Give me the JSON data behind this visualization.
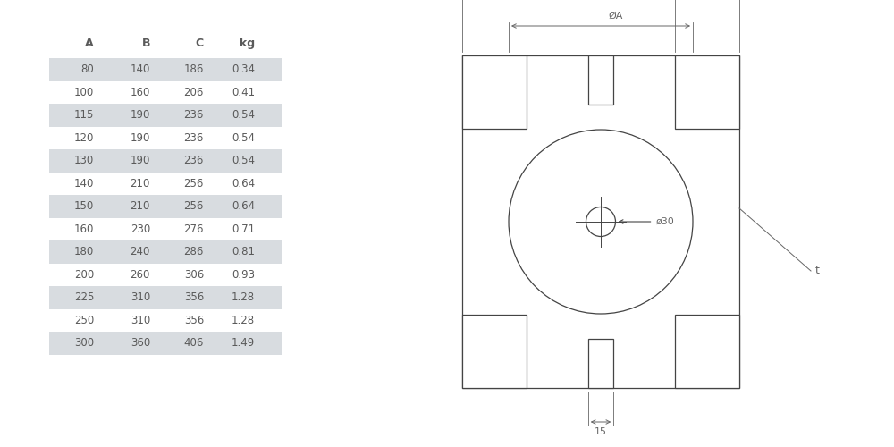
{
  "table_headers": [
    "A",
    "B",
    "C",
    "kg"
  ],
  "table_data": [
    [
      80,
      140,
      186,
      0.34
    ],
    [
      100,
      160,
      206,
      0.41
    ],
    [
      115,
      190,
      236,
      0.54
    ],
    [
      120,
      190,
      236,
      0.54
    ],
    [
      130,
      190,
      236,
      0.54
    ],
    [
      140,
      210,
      256,
      0.64
    ],
    [
      150,
      210,
      256,
      0.64
    ],
    [
      160,
      230,
      276,
      0.71
    ],
    [
      180,
      240,
      286,
      0.81
    ],
    [
      200,
      260,
      306,
      0.93
    ],
    [
      225,
      310,
      356,
      1.28
    ],
    [
      250,
      310,
      356,
      1.28
    ],
    [
      300,
      360,
      406,
      1.49
    ]
  ],
  "shaded_rows": [
    0,
    2,
    4,
    6,
    8,
    10,
    12
  ],
  "row_bg_shaded": "#d8dce0",
  "row_bg_white": "#ffffff",
  "text_color": "#5a5a5a",
  "header_color": "#5a5a5a",
  "line_color": "#444444",
  "dim_color": "#666666",
  "bg_color": "#ffffff"
}
